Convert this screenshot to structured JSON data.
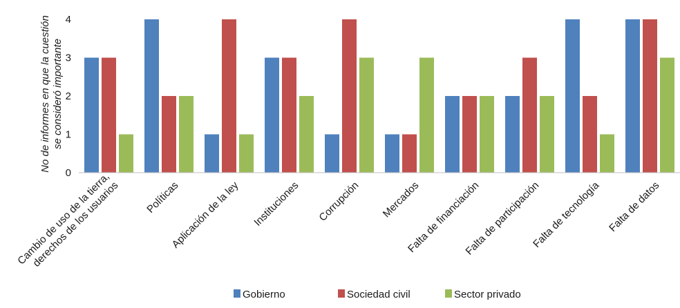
{
  "chart_data": {
    "type": "bar",
    "ylabel_lines": [
      "No de informes en que la cuestión",
      "se consideró importante"
    ],
    "categories": [
      [
        "Cambio de uso de la tierra,",
        "derechos de los usuarios"
      ],
      [
        "Políticas"
      ],
      [
        "Aplicación de la ley"
      ],
      [
        "Instituciones"
      ],
      [
        "Corrupción"
      ],
      [
        "Mercados"
      ],
      [
        "Falta de financiación"
      ],
      [
        "Falta de participación"
      ],
      [
        "Falta de tecnología"
      ],
      [
        "Falta de datos"
      ]
    ],
    "series": [
      {
        "name": "Gobierno",
        "color": "#4F81BD",
        "values": [
          3,
          4,
          1,
          3,
          1,
          1,
          2,
          2,
          4,
          4
        ]
      },
      {
        "name": "Sociedad civil",
        "color": "#C0504D",
        "values": [
          3,
          2,
          4,
          3,
          4,
          1,
          2,
          3,
          2,
          4
        ]
      },
      {
        "name": "Sector privado",
        "color": "#9BBB59",
        "values": [
          1,
          2,
          1,
          2,
          3,
          3,
          2,
          2,
          1,
          3
        ]
      }
    ],
    "yticks": [
      0,
      1,
      2,
      3,
      4
    ],
    "ylim": [
      0,
      4
    ],
    "grid": false,
    "legend_position": "bottom"
  }
}
